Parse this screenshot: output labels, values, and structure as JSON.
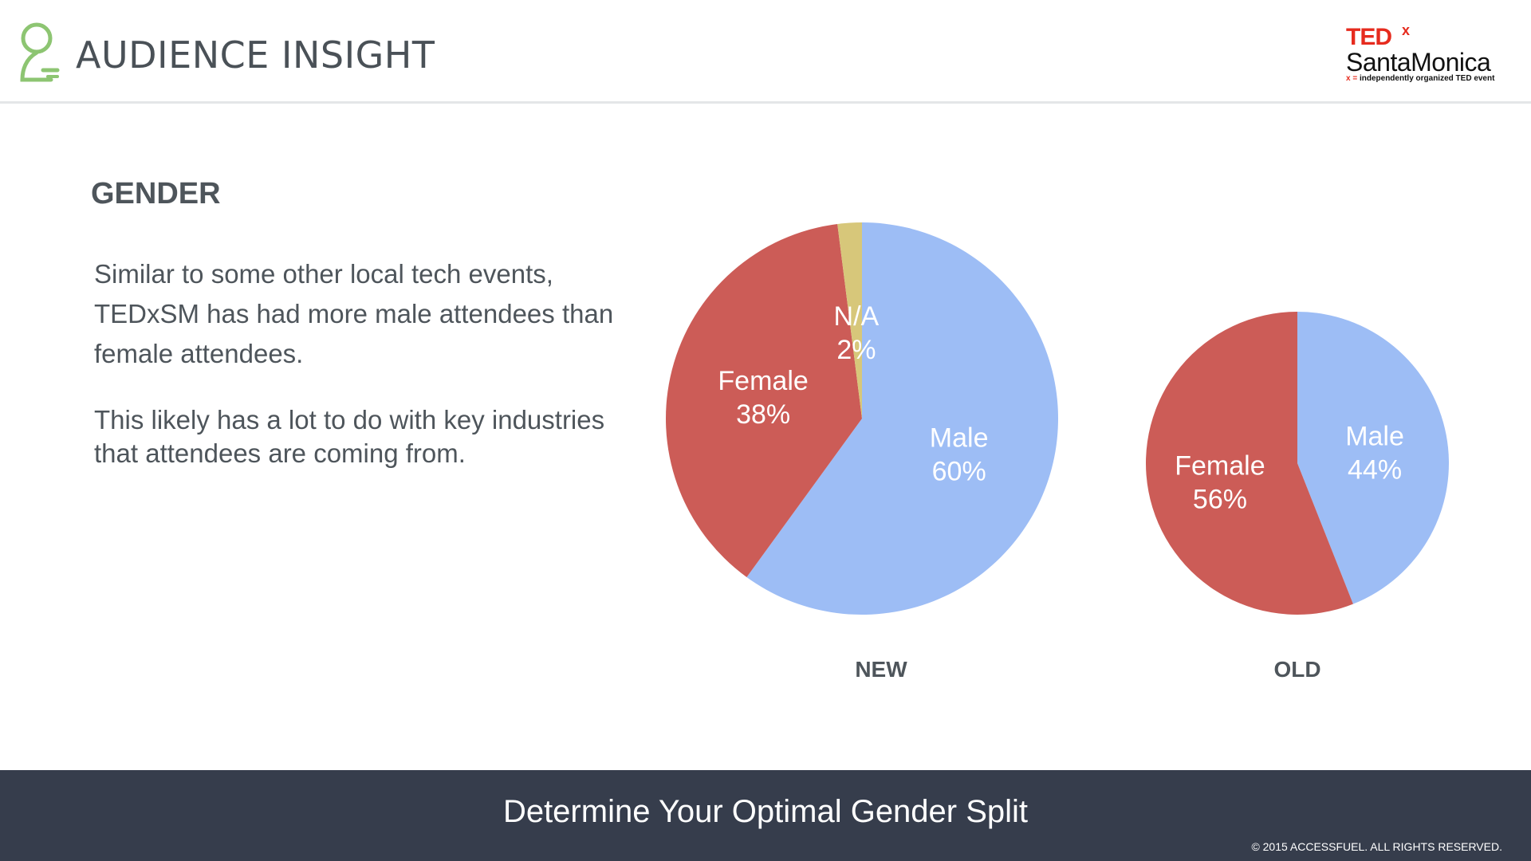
{
  "header": {
    "title": "AUDIENCE INSIGHT",
    "logo_icon": "person-outline-icon",
    "brand": {
      "ted": "TED",
      "x": "x",
      "city": "SantaMonica",
      "tagline_x": "x =",
      "tagline": "independently organized TED event"
    }
  },
  "section": {
    "title": "GENDER",
    "paragraph_1": "Similar to some other local tech events, TEDxSM has had more male attendees than female attendees.",
    "paragraph_2": "This likely has a lot to do with key industries that attendees are coming from."
  },
  "chart_data": [
    {
      "type": "pie",
      "caption": "NEW",
      "slices": [
        {
          "label": "Male",
          "value": 60,
          "display": "60%",
          "color": "#9dbdf5"
        },
        {
          "label": "Female",
          "value": 38,
          "display": "38%",
          "color": "#cc5c57"
        },
        {
          "label": "N/A",
          "value": 2,
          "display": "2%",
          "color": "#d7c77a"
        }
      ]
    },
    {
      "type": "pie",
      "caption": "OLD",
      "slices": [
        {
          "label": "Male",
          "value": 44,
          "display": "44%",
          "color": "#9dbdf5"
        },
        {
          "label": "Female",
          "value": 56,
          "display": "56%",
          "color": "#cc5c57"
        }
      ]
    }
  ],
  "footer": {
    "title": "Determine Your Optimal Gender Split",
    "copyright": "© 2015 ACCESSFUEL.  ALL RIGHTS RESERVED."
  }
}
